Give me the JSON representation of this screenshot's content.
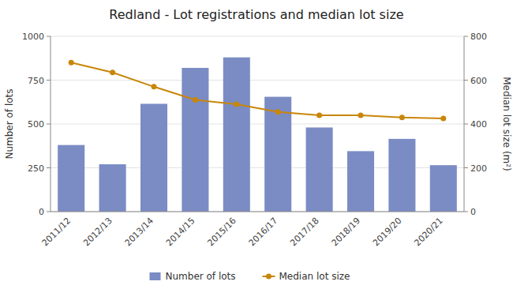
{
  "chart_data": {
    "type": "bar",
    "title": "Redland - Lot registrations and median lot size",
    "categories": [
      "2011/12",
      "2012/13",
      "2013/14",
      "2014/15",
      "2015/16",
      "2016/17",
      "2017/18",
      "2018/19",
      "2019/20",
      "2020/21"
    ],
    "series": [
      {
        "name": "Number of lots",
        "type": "bar",
        "color": "#7b8cc4",
        "values": [
          380,
          270,
          615,
          820,
          880,
          655,
          480,
          345,
          415,
          265
        ]
      },
      {
        "name": "Median lot size",
        "type": "line",
        "axis": "y2",
        "color": "#c8860a",
        "marker": "circle",
        "values": [
          680,
          635,
          570,
          510,
          490,
          455,
          440,
          440,
          430,
          425
        ]
      }
    ],
    "ylabel": "Number of lots",
    "y2label": "Median lot size (m²)",
    "ylim": [
      0,
      1000
    ],
    "yticks": [
      0,
      250,
      500,
      750,
      1000
    ],
    "y2lim": [
      0,
      800
    ],
    "y2ticks": [
      0,
      200,
      400,
      600,
      800
    ],
    "grid": true,
    "legend": "bottom"
  }
}
